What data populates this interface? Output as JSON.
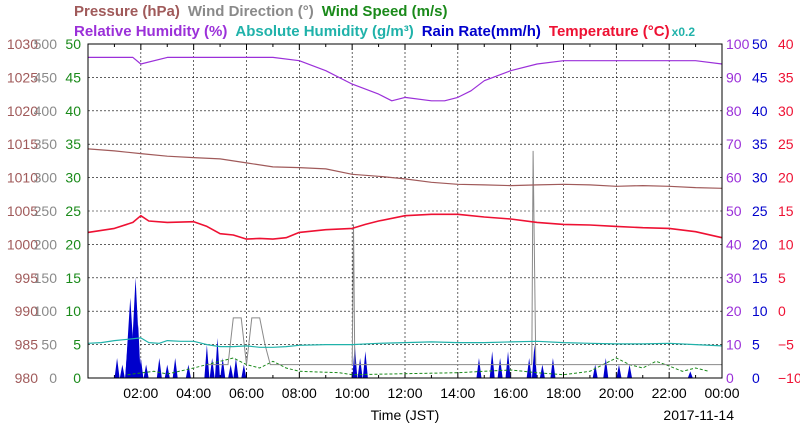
{
  "chart_data": {
    "type": "line",
    "title_rows": [
      [
        {
          "label": "Pressure (hPa)",
          "color": "#a05a5a"
        },
        {
          "label": "Wind Direction (°)",
          "color": "#8a8a8a"
        },
        {
          "label": "Wind Speed (m/s)",
          "color": "#1a8a1a"
        }
      ],
      [
        {
          "label": "Relative Humidity (%)",
          "color": "#9b30d9"
        },
        {
          "label": "Absolute Humidity (g/m³)",
          "color": "#20b2aa"
        },
        {
          "label": "Rain Rate(mm/h)",
          "color": "#0000cc"
        },
        {
          "label": "Temperature (°C)",
          "color": "#ee1133"
        },
        {
          "label": "x0.2",
          "color": "#20b2aa"
        }
      ]
    ],
    "xlabel": "Time (JST)",
    "date": "2017-11-14",
    "x_range": [
      0,
      24
    ],
    "x_ticks": [
      "02:00",
      "04:00",
      "06:00",
      "08:00",
      "10:00",
      "12:00",
      "14:00",
      "16:00",
      "18:00",
      "20:00",
      "22:00",
      "00:00"
    ],
    "grid": true,
    "left_axes": [
      {
        "name": "Pressure",
        "color": "#a05a5a",
        "ticks": [
          "980",
          "985",
          "990",
          "995",
          "1000",
          "1005",
          "1010",
          "1015",
          "1020",
          "1025",
          "1030"
        ]
      },
      {
        "name": "Wind Direction",
        "color": "#8a8a8a",
        "ticks": [
          "0",
          "50",
          "100",
          "150",
          "200",
          "250",
          "300",
          "350",
          "400",
          "450",
          "500"
        ]
      },
      {
        "name": "Wind Speed",
        "color": "#1a8a1a",
        "ticks": [
          "0",
          "5",
          "10",
          "15",
          "20",
          "25",
          "30",
          "35",
          "40",
          "45",
          "50"
        ]
      }
    ],
    "right_axes": [
      {
        "name": "Relative Humidity",
        "color": "#9b30d9",
        "ticks": [
          "0",
          "10",
          "20",
          "30",
          "40",
          "50",
          "60",
          "70",
          "80",
          "90",
          "100"
        ]
      },
      {
        "name": "Rain Rate",
        "color": "#0000cc",
        "ticks": [
          "0",
          "5",
          "10",
          "15",
          "20",
          "25",
          "30",
          "35",
          "40",
          "45",
          "50"
        ]
      },
      {
        "name": "Temperature",
        "color": "#ee1133",
        "ticks": [
          "−10",
          "−5",
          "0",
          "5",
          "10",
          "15",
          "20",
          "25",
          "30",
          "35",
          "40"
        ]
      }
    ],
    "series": [
      {
        "name": "Relative Humidity",
        "color": "#9b30d9",
        "ymin": 0,
        "ymax": 100,
        "x": [
          0,
          1,
          1.7,
          2.0,
          3,
          5,
          7,
          8,
          9,
          10,
          11,
          11.5,
          12,
          13,
          13.5,
          14,
          14.5,
          15,
          16,
          17,
          18,
          19,
          20,
          21,
          22,
          23,
          24
        ],
        "y": [
          96,
          96,
          96,
          94,
          96,
          96,
          96,
          95,
          92,
          88,
          85,
          83,
          84,
          83,
          83,
          84,
          86,
          89,
          92,
          94,
          95,
          95,
          95,
          95,
          95,
          95,
          94
        ]
      },
      {
        "name": "Pressure",
        "color": "#a05a5a",
        "ymin": 980,
        "ymax": 1030,
        "x": [
          0,
          1,
          2,
          3,
          4,
          5,
          6,
          7,
          8,
          9,
          10,
          11,
          12,
          13,
          14,
          15,
          16,
          17,
          18,
          19,
          20,
          21,
          22,
          23,
          24
        ],
        "y": [
          1014.3,
          1014.0,
          1013.6,
          1013.2,
          1013.0,
          1012.8,
          1012.2,
          1011.6,
          1011.5,
          1011.3,
          1010.5,
          1010.2,
          1009.8,
          1009.3,
          1009.0,
          1008.9,
          1008.8,
          1008.9,
          1009.0,
          1008.9,
          1008.7,
          1008.8,
          1008.7,
          1008.5,
          1008.4
        ]
      },
      {
        "name": "Absolute Humidity",
        "color": "#20b2aa",
        "ymin": 0,
        "ymax": 50,
        "x": [
          0,
          0.5,
          1,
          1.5,
          2.0,
          2.3,
          2.7,
          3,
          3.5,
          4,
          4.5,
          5,
          5.5,
          6,
          6.5,
          7,
          7.5,
          8,
          9,
          10,
          11,
          12,
          13,
          14,
          15,
          16,
          17,
          18,
          19,
          20,
          21,
          22,
          23,
          24
        ],
        "y": [
          5.2,
          5.3,
          5.6,
          5.8,
          6.0,
          5.3,
          5.2,
          5.6,
          5.5,
          5.5,
          5.0,
          4.7,
          4.7,
          4.8,
          4.6,
          4.6,
          4.7,
          4.9,
          5.0,
          5.0,
          5.2,
          5.3,
          5.4,
          5.3,
          5.3,
          5.4,
          5.5,
          5.3,
          5.2,
          5.1,
          5.1,
          5.2,
          5.0,
          4.8
        ]
      },
      {
        "name": "Temperature",
        "color": "#ee1133",
        "ymin": -10,
        "ymax": 40,
        "x": [
          0,
          1,
          1.7,
          2.0,
          2.3,
          3,
          4,
          4.5,
          5,
          5.5,
          6,
          6.5,
          7,
          7.5,
          8,
          9,
          10,
          10.5,
          11,
          12,
          13,
          14,
          15,
          16,
          17,
          18,
          19,
          20,
          21,
          22,
          23,
          24
        ],
        "y": [
          11.8,
          12.4,
          13.3,
          14.3,
          13.5,
          13.3,
          13.4,
          12.7,
          11.6,
          11.4,
          10.8,
          10.9,
          10.8,
          11.0,
          11.8,
          12.2,
          12.4,
          13.0,
          13.5,
          14.3,
          14.5,
          14.5,
          14.1,
          13.8,
          13.3,
          13.0,
          12.9,
          12.7,
          12.5,
          12.4,
          11.9,
          11.0
        ]
      }
    ],
    "wind_direction": {
      "color": "#8a8a8a",
      "ymin": 0,
      "ymax": 500,
      "x": [
        4.5,
        5.3,
        5.5,
        5.8,
        6.0,
        6.2,
        6.5,
        6.7,
        6.9,
        7.0,
        10.0,
        10.05,
        10.1,
        10.2,
        16.8,
        16.85,
        16.95,
        17.0,
        17.5,
        19.0,
        24
      ],
      "y": [
        20,
        20,
        90,
        90,
        20,
        90,
        90,
        50,
        20,
        20,
        20,
        230,
        20,
        20,
        20,
        340,
        20,
        20,
        20,
        20,
        20
      ]
    },
    "wind_speed": {
      "color": "#1a8a1a",
      "ymin": 0,
      "ymax": 50,
      "x": [
        1.5,
        2.5,
        3.0,
        4.0,
        4.5,
        5.0,
        5.5,
        6.0,
        6.5,
        7.0,
        7.5,
        8.0,
        9.5,
        10.0,
        14.0,
        15.0,
        16.0,
        17.0,
        18.0,
        19.0,
        19.5,
        20.0,
        20.5,
        21.0,
        21.5,
        22.0,
        22.5,
        23.0,
        23.5
      ],
      "y": [
        0.5,
        1.0,
        0.6,
        1.5,
        2.0,
        2.5,
        3.0,
        2.0,
        1.5,
        2.5,
        1.5,
        1.0,
        0.8,
        0.5,
        0.8,
        1.0,
        1.2,
        0.8,
        0.5,
        1.0,
        2.0,
        3.0,
        2.0,
        1.5,
        2.5,
        1.8,
        1.0,
        1.5,
        1.0
      ]
    },
    "rain_rate": {
      "color": "#0000cc",
      "ymin": 0,
      "ymax": 50,
      "events": [
        [
          1.1,
          3
        ],
        [
          1.3,
          2
        ],
        [
          1.5,
          5
        ],
        [
          1.6,
          12
        ],
        [
          1.8,
          15
        ],
        [
          1.9,
          8
        ],
        [
          2.0,
          3
        ],
        [
          2.2,
          2
        ],
        [
          2.7,
          3
        ],
        [
          3.0,
          2
        ],
        [
          3.3,
          3
        ],
        [
          3.8,
          2
        ],
        [
          4.5,
          5
        ],
        [
          4.7,
          3
        ],
        [
          4.9,
          6
        ],
        [
          5.1,
          3
        ],
        [
          5.4,
          2
        ],
        [
          5.6,
          3
        ],
        [
          5.9,
          2
        ],
        [
          10.1,
          5
        ],
        [
          10.3,
          3
        ],
        [
          10.5,
          4
        ],
        [
          14.8,
          3
        ],
        [
          15.3,
          4
        ],
        [
          15.6,
          3
        ],
        [
          15.9,
          4
        ],
        [
          16.7,
          3
        ],
        [
          16.9,
          5
        ],
        [
          17.2,
          2
        ],
        [
          17.6,
          3
        ],
        [
          19.2,
          2
        ],
        [
          19.6,
          3
        ],
        [
          20.1,
          2
        ],
        [
          20.5,
          2
        ],
        [
          22.8,
          1
        ]
      ]
    }
  }
}
